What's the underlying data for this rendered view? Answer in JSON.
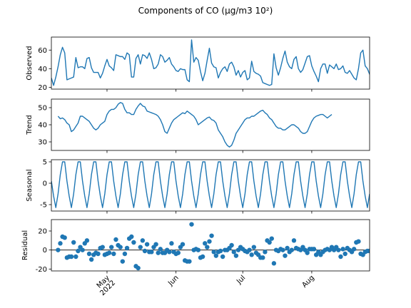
{
  "chart_data": {
    "type": "line",
    "title": "Components of CO (µg/m3 10²)",
    "x_range": [
      "2022-04-06",
      "2022-08-27"
    ],
    "x_ticks": [
      {
        "date": "2022-05-01",
        "label": "May",
        "label2": "2022"
      },
      {
        "date": "2022-06-01",
        "label": "Jun"
      },
      {
        "date": "2022-07-01",
        "label": "Jul"
      },
      {
        "date": "2022-08-01",
        "label": "Aug"
      }
    ],
    "panels": [
      {
        "name": "observed",
        "type": "line",
        "ylabel": "Observed",
        "ylim": [
          18,
          74
        ],
        "yticks": [
          20,
          40,
          60
        ],
        "start_date": "2022-04-06",
        "values": [
          30,
          22,
          31,
          42,
          55,
          63,
          57,
          28,
          29,
          30,
          31,
          52,
          41,
          42,
          42,
          40,
          51,
          52,
          41,
          36,
          36,
          36,
          30,
          35,
          43,
          50,
          43,
          41,
          38,
          55,
          54,
          53,
          53,
          50,
          57,
          55,
          31,
          31,
          51,
          55,
          45,
          55,
          54,
          51,
          57,
          50,
          40,
          41,
          45,
          55,
          53,
          47,
          49,
          52,
          45,
          42,
          38,
          37,
          40,
          39,
          39,
          28,
          26,
          71,
          47,
          52,
          49,
          37,
          27,
          35,
          49,
          62,
          46,
          42,
          41,
          30,
          36,
          40,
          42,
          37,
          45,
          47,
          42,
          33,
          38,
          31,
          36,
          38,
          28,
          30,
          48,
          37,
          35,
          34,
          32,
          25,
          24,
          23,
          22,
          23,
          56,
          41,
          33,
          41,
          51,
          59,
          47,
          42,
          40,
          50,
          53,
          40,
          36,
          39,
          46,
          53,
          54,
          43,
          37,
          32,
          26,
          40,
          45,
          45,
          35,
          44,
          42,
          40,
          45,
          39,
          40,
          43,
          36,
          35,
          38,
          34,
          30,
          28,
          40,
          57,
          60,
          43,
          40,
          34,
          31,
          42,
          43,
          47,
          64,
          50
        ]
      },
      {
        "name": "trend",
        "type": "line",
        "ylabel": "Trend",
        "ylim": [
          25,
          55
        ],
        "yticks": [
          30,
          40,
          50
        ],
        "start_date": "2022-04-09",
        "values": [
          45,
          43.5,
          44,
          43,
          41,
          40,
          36,
          37,
          39,
          41,
          45,
          45,
          44,
          43,
          42,
          40,
          38,
          37,
          38,
          40,
          41,
          42,
          46,
          48,
          49,
          49,
          50,
          52,
          53,
          52.5,
          49,
          47,
          47,
          46,
          46,
          49,
          51,
          52.5,
          51,
          50.5,
          48,
          47.5,
          47,
          46.5,
          46,
          45,
          43,
          40,
          36,
          35,
          38,
          41,
          43,
          44,
          45,
          46,
          47,
          46.5,
          48,
          47,
          46,
          45,
          43,
          40,
          41,
          42,
          43,
          44,
          44.5,
          43,
          42.5,
          41,
          37,
          35,
          33,
          30,
          28,
          27,
          28,
          31,
          35,
          37,
          39,
          41,
          43,
          44,
          44,
          45,
          45,
          46,
          47,
          48,
          48.5,
          47,
          46,
          44,
          43,
          41,
          39,
          38,
          38,
          37,
          37,
          38,
          39,
          40,
          40,
          39,
          38,
          36,
          35,
          35,
          36,
          39,
          42,
          44,
          45,
          45.5,
          46,
          46,
          45,
          44,
          45,
          46
        ]
      },
      {
        "name": "seasonal",
        "type": "line",
        "ylabel": "Seasonal",
        "ylim": [
          -6.5,
          5.5
        ],
        "yticks": [
          -5,
          0,
          5
        ],
        "start_date": "2022-04-06",
        "period_values": [
          0.5,
          -3,
          -5.7,
          -2.5,
          2,
          5,
          5
        ]
      },
      {
        "name": "residual",
        "type": "scatter",
        "ylabel": "Residual",
        "ylim": [
          -22,
          32
        ],
        "yticks": [
          -20,
          0,
          20
        ],
        "start_date": "2022-04-09",
        "values": [
          0,
          7,
          14,
          13,
          -8,
          -7,
          -7,
          8,
          -7,
          -1,
          3,
          0,
          7,
          10,
          -4,
          -10,
          -5,
          -3,
          -4,
          2,
          3,
          -5,
          -4,
          -3,
          3,
          -4,
          11,
          5,
          3,
          -12,
          -4,
          2,
          12,
          14,
          8,
          -17,
          -19,
          3,
          10,
          -1,
          6,
          -2,
          -2,
          3,
          6,
          -3,
          1,
          -3,
          -3,
          0,
          -2,
          7,
          -2,
          -4,
          -3,
          3,
          6,
          -11,
          -12,
          -12,
          27,
          0,
          1,
          0,
          -8,
          -7,
          7,
          3,
          9,
          15,
          -2,
          -6,
          -2,
          -1,
          -7,
          0,
          0,
          2,
          5,
          -2,
          -6,
          0,
          3,
          1,
          -1,
          -2,
          0,
          -5,
          3,
          -3,
          -5,
          -8,
          -8,
          -2,
          10,
          8,
          12,
          -14,
          0,
          -1,
          1,
          0,
          -6,
          2,
          -2,
          0,
          10,
          2,
          1,
          0,
          3,
          0,
          -3,
          1,
          1,
          1,
          -5,
          -2,
          -5,
          -2,
          0,
          1,
          0,
          3,
          0,
          3,
          0,
          -7,
          1,
          -4,
          2,
          0,
          -2,
          1,
          8,
          9,
          -4,
          -5,
          -2,
          -1,
          -1
        ]
      }
    ],
    "grid": false,
    "legend": false,
    "colors": {
      "line": "#1f77b4",
      "marker": "#1f77b4",
      "axis": "#000000",
      "zero_line": "#000000"
    }
  }
}
